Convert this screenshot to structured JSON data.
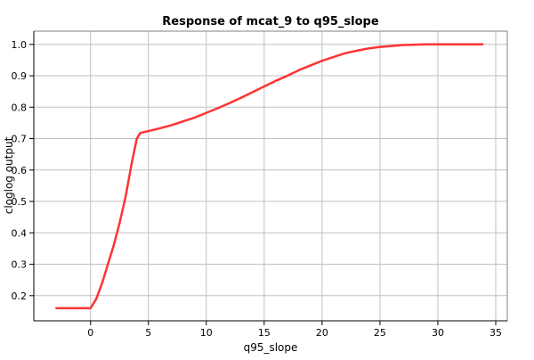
{
  "chart_data": {
    "type": "line",
    "title": "Response of mcat_9 to q95_slope",
    "xlabel": "q95_slope",
    "ylabel": "cloglog output",
    "xlim": [
      -4.9,
      36
    ],
    "ylim": [
      0.12,
      1.042
    ],
    "xticks": [
      0,
      5,
      10,
      15,
      20,
      25,
      30,
      35
    ],
    "yticks": [
      0.2,
      0.3,
      0.4,
      0.5,
      0.6,
      0.7,
      0.8,
      0.9,
      1.0
    ],
    "ytick_labels": [
      "0.2",
      "0.3",
      "0.4",
      "0.5",
      "0.6",
      "0.7",
      "0.8",
      "0.9",
      "1.0"
    ],
    "grid": true,
    "color": "#ff3333",
    "series": [
      {
        "x": [
          -3,
          0,
          0.5,
          1,
          1.5,
          2,
          2.5,
          3,
          3.3,
          3.6,
          4,
          4.3,
          5,
          6,
          7,
          8,
          9,
          10,
          11,
          12,
          13,
          14,
          15,
          16,
          17,
          18,
          19,
          20,
          21,
          22,
          23,
          24,
          25,
          26,
          27,
          29,
          33.9
        ],
        "y": [
          0.16,
          0.16,
          0.19,
          0.24,
          0.3,
          0.36,
          0.43,
          0.51,
          0.57,
          0.63,
          0.7,
          0.718,
          0.724,
          0.733,
          0.743,
          0.755,
          0.767,
          0.782,
          0.797,
          0.813,
          0.83,
          0.848,
          0.866,
          0.884,
          0.9,
          0.918,
          0.933,
          0.948,
          0.96,
          0.972,
          0.98,
          0.987,
          0.992,
          0.995,
          0.998,
          1.0,
          1.0
        ]
      }
    ]
  }
}
